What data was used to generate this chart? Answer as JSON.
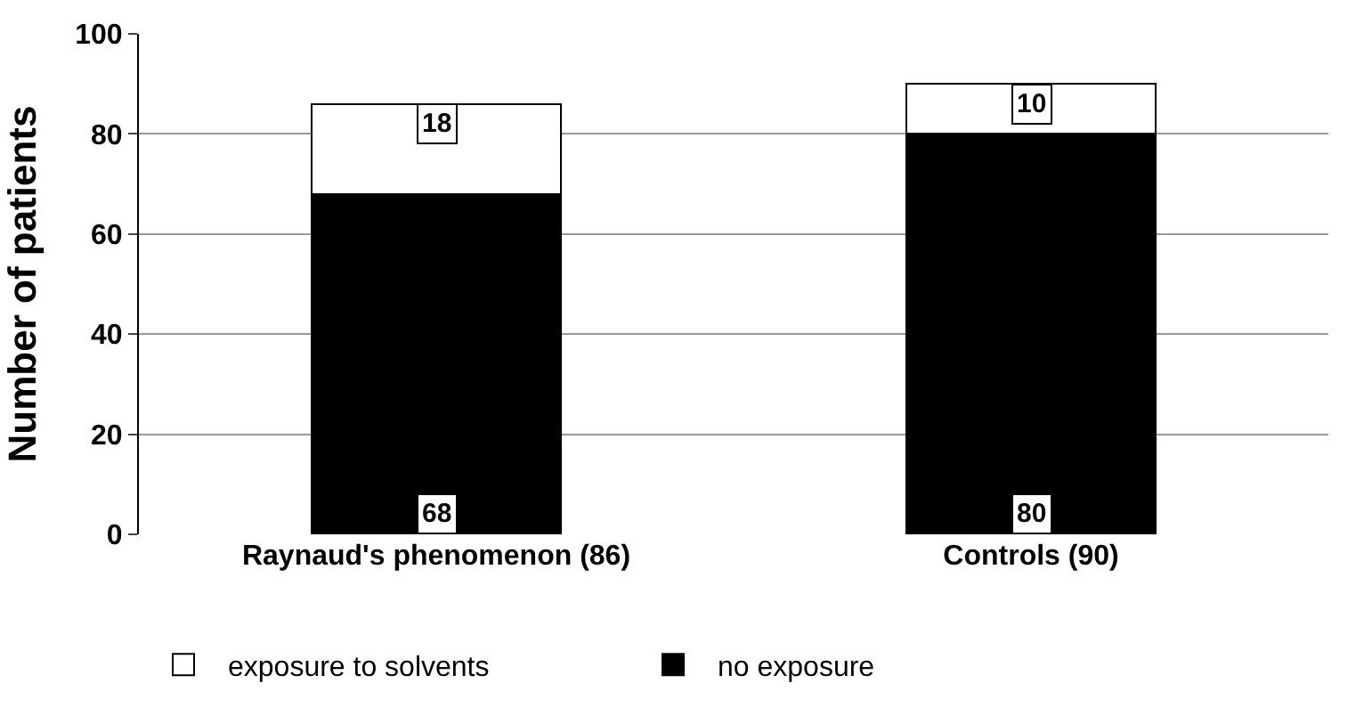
{
  "chart_data": {
    "type": "bar",
    "stacked": true,
    "ylabel": "Number of patients",
    "categories": [
      "Raynaud's phenomenon (86)",
      "Controls (90)"
    ],
    "series": [
      {
        "name": "no exposure",
        "color": "#000000",
        "values": [
          68,
          80
        ]
      },
      {
        "name": "exposure to solvents",
        "color": "#ffffff",
        "values": [
          18,
          10
        ]
      }
    ],
    "ylim": [
      0,
      100
    ],
    "yticks": [
      0,
      20,
      40,
      60,
      80,
      100
    ],
    "grid": "y",
    "legend": "bottom",
    "data_labels": true
  }
}
